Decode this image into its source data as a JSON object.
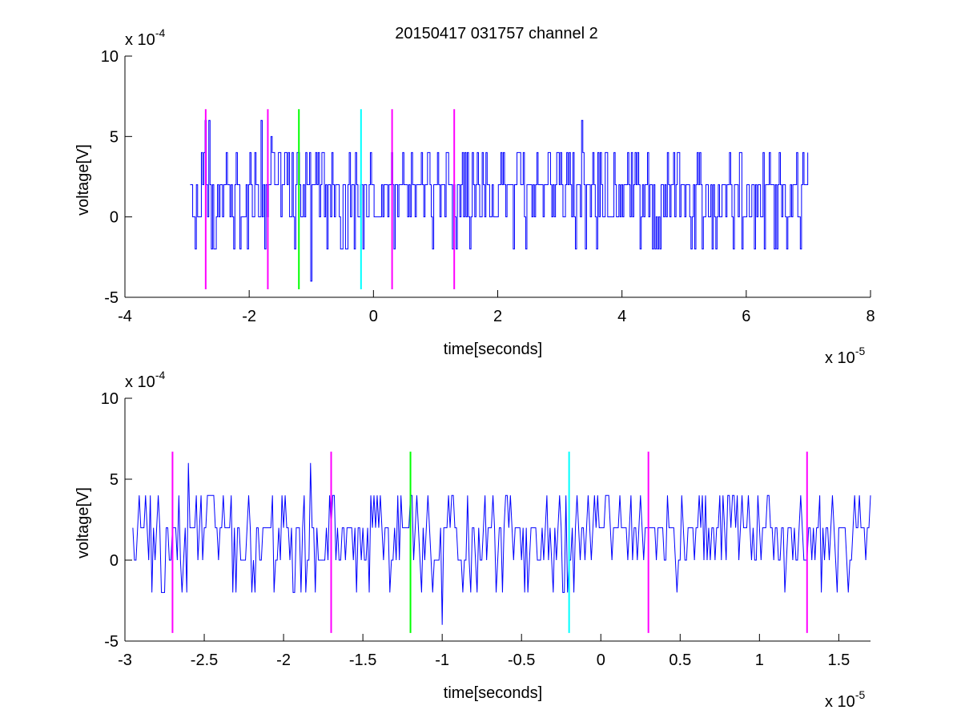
{
  "figure_title": "20150417 031757 channel 2",
  "colors": {
    "signal": "#0000ff",
    "magenta": "#ff00ff",
    "green": "#00ff00",
    "cyan": "#00ffff",
    "axis": "#000000"
  },
  "chart_data": [
    {
      "type": "line",
      "title": "20150417 031757 channel 2",
      "xlabel": "time[seconds]",
      "ylabel": "voltage[V]",
      "x_multiplier": "x 10",
      "x_exponent": "-5",
      "y_multiplier": "x 10",
      "y_exponent": "-4",
      "xlim": [
        -4,
        8
      ],
      "ylim": [
        -5,
        10
      ],
      "xticks": [
        -4,
        -2,
        0,
        2,
        4,
        6,
        8
      ],
      "xtick_labels": [
        "-4",
        "-2",
        "0",
        "2",
        "4",
        "6",
        "8"
      ],
      "yticks": [
        -5,
        0,
        5,
        10
      ],
      "ytick_labels": [
        "-5",
        "0",
        "5",
        "10"
      ],
      "signal": {
        "x_start": -2.95,
        "x_end": 7.0,
        "dx": 0.02,
        "levels": [
          -2,
          0,
          2,
          4
        ],
        "spikes": [
          [
            -2.7,
            6
          ],
          [
            -2.65,
            6
          ],
          [
            -1.8,
            6
          ],
          [
            -1.65,
            5
          ],
          [
            -1.0,
            -4
          ],
          [
            3.35,
            6
          ]
        ]
      },
      "markers": [
        {
          "x": -2.7,
          "color": "magenta",
          "y_range": [
            -4.5,
            6.7
          ]
        },
        {
          "x": -1.7,
          "color": "magenta",
          "y_range": [
            -4.5,
            6.7
          ]
        },
        {
          "x": -1.2,
          "color": "green",
          "y_range": [
            -4.5,
            6.7
          ]
        },
        {
          "x": -0.2,
          "color": "cyan",
          "y_range": [
            -4.5,
            6.7
          ]
        },
        {
          "x": 0.3,
          "color": "magenta",
          "y_range": [
            -4.5,
            6.7
          ]
        },
        {
          "x": 1.3,
          "color": "magenta",
          "y_range": [
            -4.5,
            6.7
          ]
        }
      ]
    },
    {
      "type": "line",
      "title": "",
      "xlabel": "time[seconds]",
      "ylabel": "voltage[V]",
      "x_multiplier": "x 10",
      "x_exponent": "-5",
      "y_multiplier": "x 10",
      "y_exponent": "-4",
      "xlim": [
        -3.0,
        1.7
      ],
      "ylim": [
        -5,
        10
      ],
      "xticks": [
        -3,
        -2.5,
        -2,
        -1.5,
        -1,
        -0.5,
        0,
        0.5,
        1,
        1.5
      ],
      "xtick_labels": [
        "-3",
        "-2.5",
        "-2",
        "-1.5",
        "-1",
        "-0.5",
        "0",
        "0.5",
        "1",
        "1.5"
      ],
      "yticks": [
        -5,
        0,
        5,
        10
      ],
      "ytick_labels": [
        "-5",
        "0",
        "5",
        "10"
      ],
      "signal": {
        "x_start": -2.95,
        "x_end": 1.7,
        "dx": 0.01,
        "levels": [
          -2,
          0,
          2,
          4
        ],
        "spikes": [
          [
            -2.6,
            6
          ],
          [
            -1.83,
            6
          ],
          [
            -1.0,
            -4
          ]
        ]
      },
      "markers": [
        {
          "x": -2.7,
          "color": "magenta",
          "y_range": [
            -4.5,
            6.7
          ]
        },
        {
          "x": -1.7,
          "color": "magenta",
          "y_range": [
            -4.5,
            6.7
          ]
        },
        {
          "x": -1.2,
          "color": "green",
          "y_range": [
            -4.5,
            6.7
          ]
        },
        {
          "x": -0.2,
          "color": "cyan",
          "y_range": [
            -4.5,
            6.7
          ]
        },
        {
          "x": 0.3,
          "color": "magenta",
          "y_range": [
            -4.5,
            6.7
          ]
        },
        {
          "x": 1.3,
          "color": "magenta",
          "y_range": [
            -4.5,
            6.7
          ]
        }
      ]
    }
  ]
}
